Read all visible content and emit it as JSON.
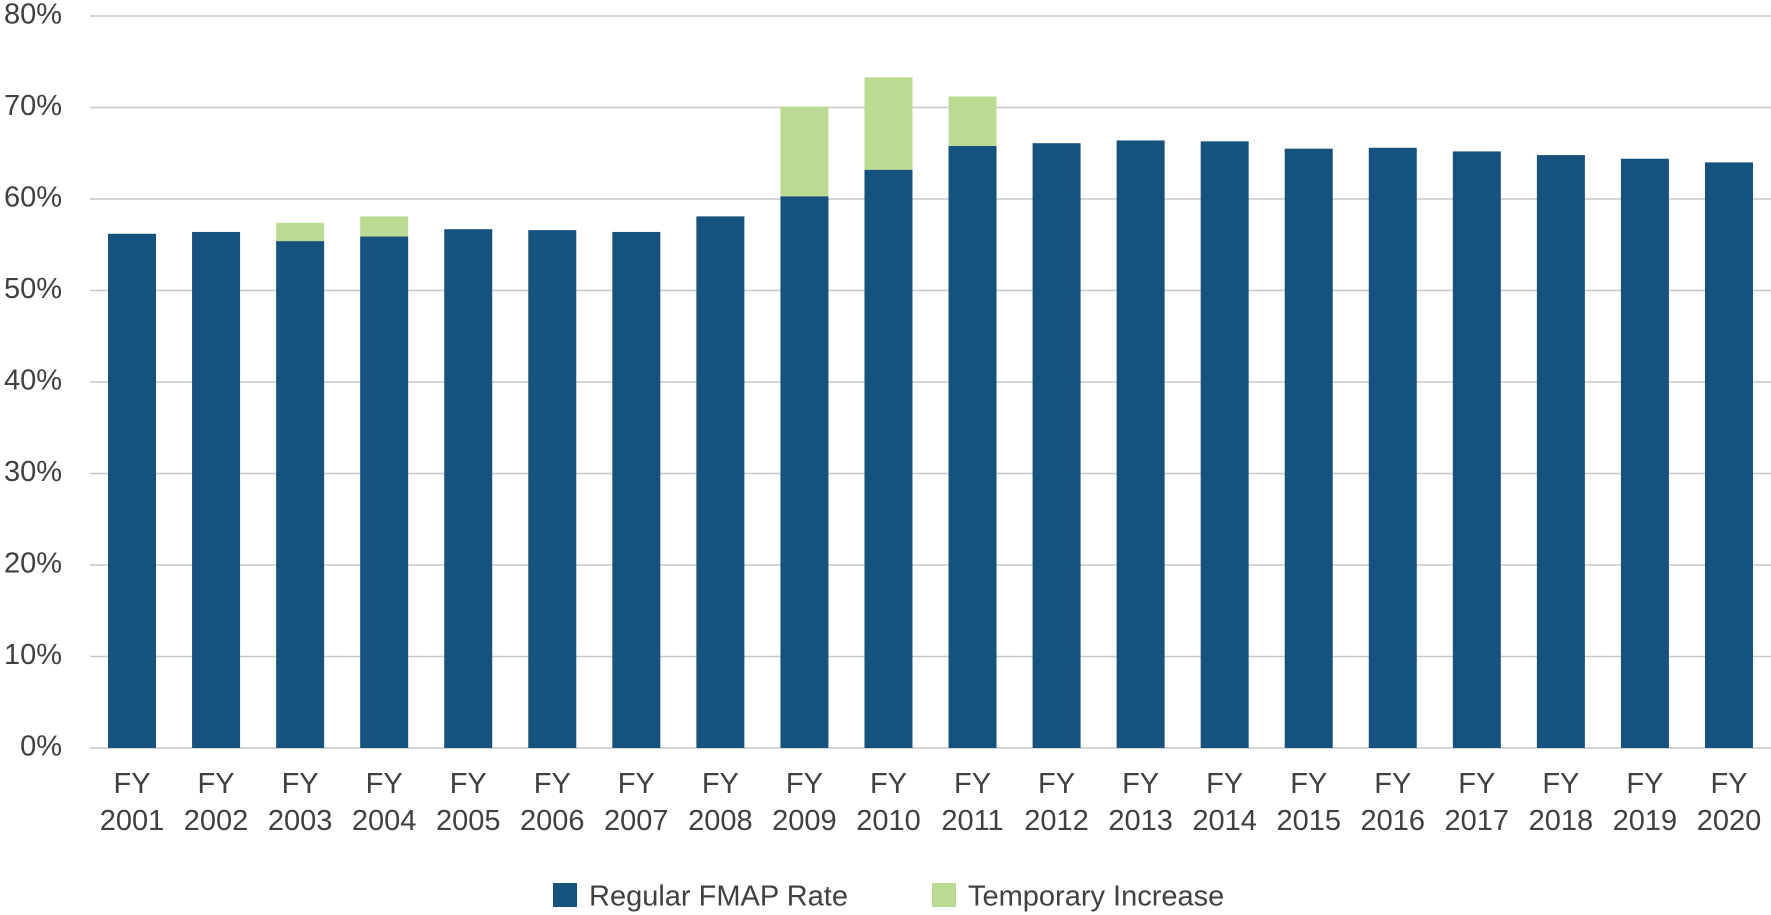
{
  "chart_data": {
    "type": "stacked_bar",
    "categories": [
      "FY 2001",
      "FY 2002",
      "FY 2003",
      "FY 2004",
      "FY 2005",
      "FY 2006",
      "FY 2007",
      "FY 2008",
      "FY 2009",
      "FY 2010",
      "FY 2011",
      "FY 2012",
      "FY 2013",
      "FY 2014",
      "FY 2015",
      "FY 2016",
      "FY 2017",
      "FY 2018",
      "FY 2019",
      "FY 2020"
    ],
    "series": [
      {
        "name": "Regular FMAP Rate",
        "color": "#16527e",
        "values": [
          56.2,
          56.4,
          55.4,
          55.9,
          56.7,
          56.6,
          56.4,
          58.1,
          60.3,
          63.2,
          65.8,
          66.1,
          66.4,
          66.3,
          65.5,
          65.6,
          65.2,
          64.8,
          64.4,
          64.0
        ]
      },
      {
        "name": "Temporary Increase",
        "color": "#bcdb92",
        "values": [
          null,
          null,
          2.0,
          2.2,
          null,
          null,
          null,
          null,
          9.8,
          10.1,
          5.4,
          null,
          null,
          null,
          null,
          null,
          null,
          null,
          null,
          null
        ]
      }
    ],
    "ylim": [
      0,
      80
    ],
    "yticks": [
      {
        "value": 0,
        "label": "0%"
      },
      {
        "value": 10,
        "label": "10%"
      },
      {
        "value": 20,
        "label": "20%"
      },
      {
        "value": 30,
        "label": "30%"
      },
      {
        "value": 40,
        "label": "40%"
      },
      {
        "value": 50,
        "label": "50%"
      },
      {
        "value": 60,
        "label": "60%"
      },
      {
        "value": 70,
        "label": "70%"
      },
      {
        "value": 80,
        "label": "80%"
      }
    ],
    "grid": true,
    "legend": "bottom"
  }
}
